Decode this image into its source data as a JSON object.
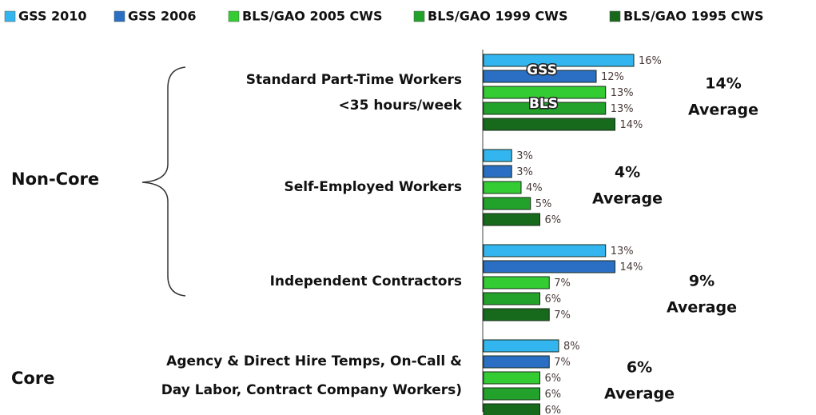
{
  "chart_data": {
    "type": "bar",
    "orientation": "horizontal",
    "categories": [
      [
        "Standard Part-Time Workers",
        "<35 hours/week"
      ],
      [
        "Self-Employed Workers"
      ],
      [
        "Independent Contractors"
      ],
      [
        "Agency & Direct Hire Temps, On-Call &",
        "Day Labor, Contract Company Workers)"
      ]
    ],
    "series": [
      {
        "name": "GSS 2010",
        "color": "#33b5f0",
        "values": [
          16,
          3,
          13,
          8
        ],
        "value_labels": [
          "16%",
          "3%",
          "13%",
          "8%"
        ]
      },
      {
        "name": "GSS 2006",
        "color": "#2a6fc4",
        "values": [
          12,
          3,
          14,
          7
        ],
        "value_labels": [
          "12%",
          "3%",
          "14%",
          "7%"
        ]
      },
      {
        "name": "BLS/GAO 2005 CWS",
        "color": "#33cc33",
        "values": [
          13,
          4,
          7,
          6
        ],
        "value_labels": [
          "13%",
          "4%",
          "7%",
          "6%"
        ]
      },
      {
        "name": "BLS/GAO 1999 CWS",
        "color": "#22a22a",
        "values": [
          13,
          5,
          6,
          6
        ],
        "value_labels": [
          "13%",
          "5%",
          "6%",
          "6%"
        ]
      },
      {
        "name": "BLS/GAO 1995 CWS",
        "color": "#17691c",
        "values": [
          14,
          6,
          7,
          6
        ],
        "value_labels": [
          "14%",
          "6%",
          "7%",
          "6%"
        ]
      }
    ],
    "averages": {
      "values": [
        14,
        4,
        9,
        6
      ],
      "value_labels": [
        "14%",
        "4%",
        "9%",
        "6%"
      ],
      "label": "Average"
    },
    "groups": [
      "Non-Core",
      "Core"
    ],
    "bar_annotations": [
      "GSS",
      "BLS"
    ],
    "legend": "top"
  }
}
